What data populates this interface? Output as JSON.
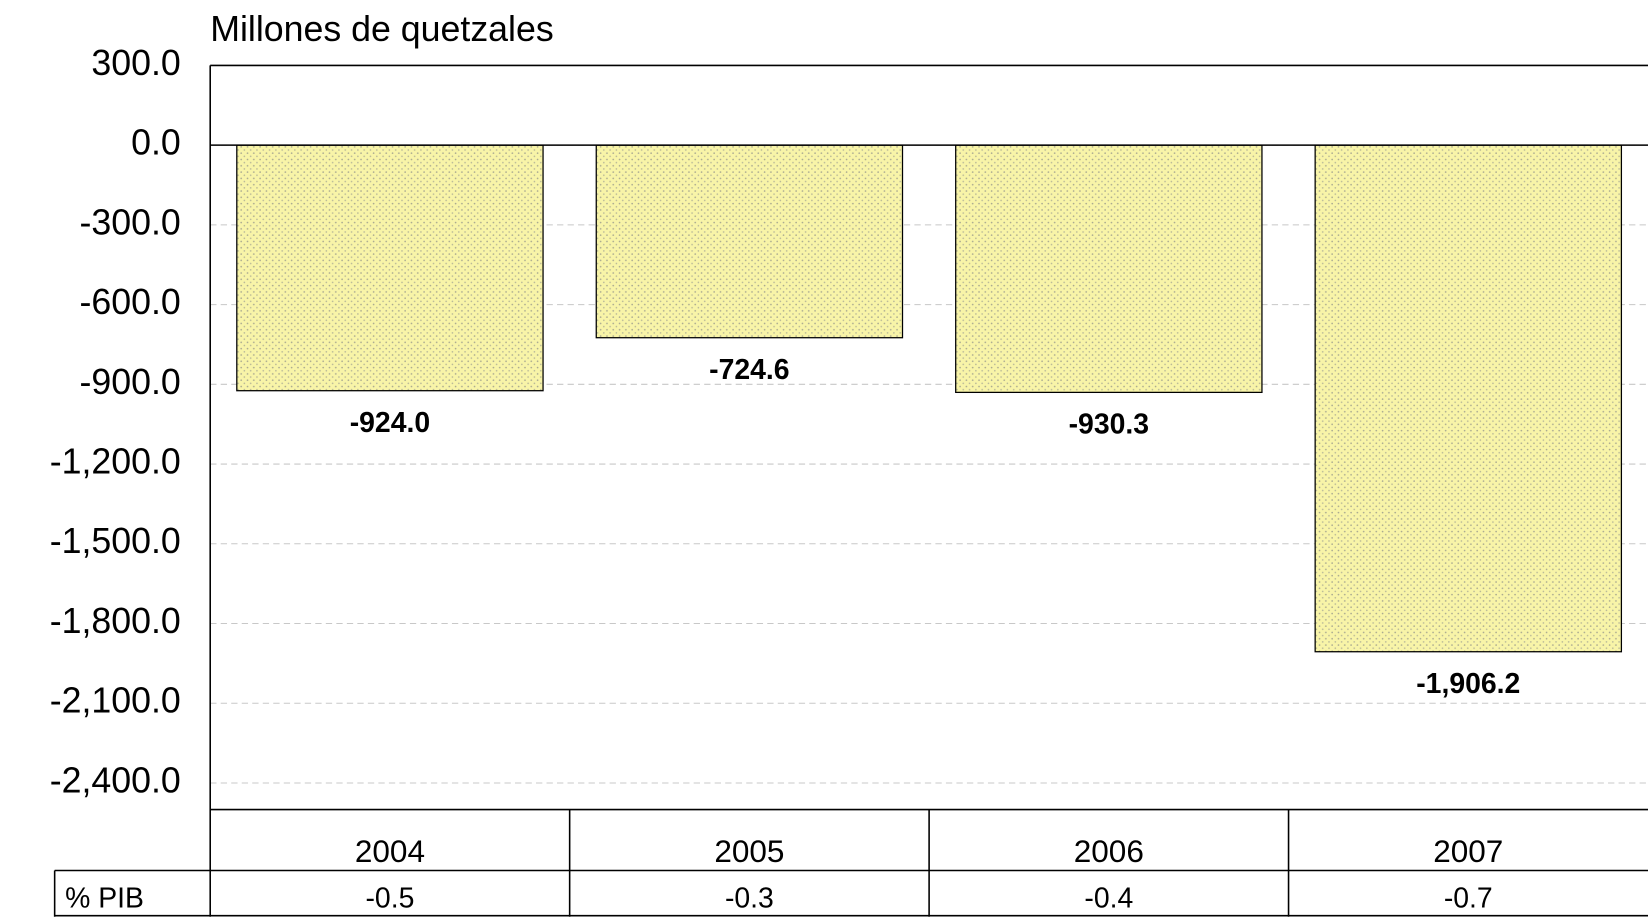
{
  "chart_data": {
    "type": "bar",
    "ylabel": "Millones de quetzales",
    "categories": [
      "2004",
      "2005",
      "2006",
      "2007"
    ],
    "values": [
      -924.0,
      -724.6,
      -930.3,
      -1906.2
    ],
    "value_labels": [
      "-924.0",
      "-724.6",
      "-930.3",
      "-1,906.2"
    ],
    "color": "#f8f4a8",
    "ylim": [
      -2500,
      300
    ],
    "yticks": [
      {
        "value": 300,
        "label": "300.0"
      },
      {
        "value": 0,
        "label": "0.0"
      },
      {
        "value": -300,
        "label": "-300.0"
      },
      {
        "value": -600,
        "label": "-600.0"
      },
      {
        "value": -900,
        "label": "-900.0"
      },
      {
        "value": -1200,
        "label": "-1,200.0"
      },
      {
        "value": -1500,
        "label": "-1,500.0"
      },
      {
        "value": -1800,
        "label": "-1,800.0"
      },
      {
        "value": -2100,
        "label": "-2,100.0"
      },
      {
        "value": -2400,
        "label": "-2,400.0"
      }
    ],
    "grid": true,
    "table_row": {
      "label": "% PIB",
      "values": [
        -0.5,
        -0.3,
        -0.4,
        -0.7
      ]
    }
  }
}
